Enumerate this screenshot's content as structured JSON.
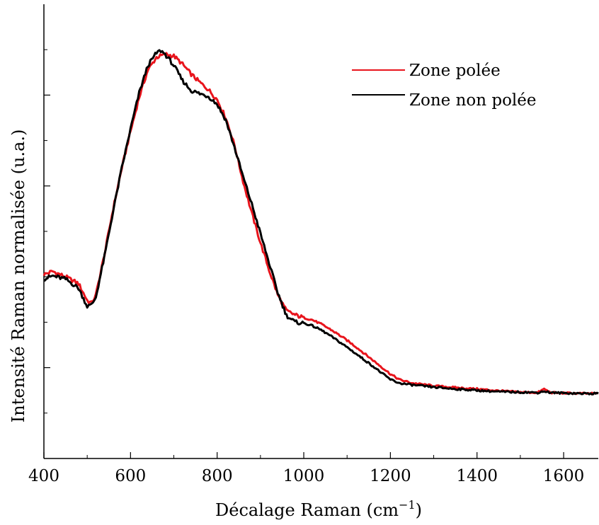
{
  "chart_data": {
    "type": "line",
    "title": "",
    "xlabel": "Décalage Raman (cm",
    "xlabel_sup": "−1",
    "xlabel_close": ")",
    "ylabel": "Intensité Raman normalisée (u.a.)",
    "xlim": [
      400,
      1680
    ],
    "ylim": [
      0,
      100
    ],
    "xticks": [
      400,
      600,
      800,
      1000,
      1200,
      1400,
      1600
    ],
    "xtick_labels": [
      "400",
      "600",
      "800",
      "1000",
      "1200",
      "1400",
      "1600"
    ],
    "grid": false,
    "legend_position": "top-right",
    "series": [
      {
        "name": "Zone polée",
        "color": "#e8141c",
        "x": [
          400,
          420,
          450,
          480,
          500,
          510,
          520,
          540,
          560,
          580,
          600,
          620,
          640,
          660,
          680,
          700,
          720,
          740,
          760,
          780,
          800,
          820,
          840,
          860,
          880,
          900,
          920,
          940,
          960,
          980,
          1000,
          1020,
          1040,
          1060,
          1080,
          1100,
          1120,
          1140,
          1160,
          1180,
          1200,
          1220,
          1250,
          1300,
          1350,
          1400,
          1450,
          1500,
          1540,
          1555,
          1570,
          1600,
          1650,
          1680
        ],
        "y": [
          40.5,
          41.2,
          40.0,
          38.5,
          34.8,
          34.2,
          36.0,
          45.0,
          55.0,
          64.0,
          72.0,
          79.5,
          85.5,
          88.3,
          89.0,
          88.6,
          86.8,
          84.6,
          82.8,
          81.2,
          79.0,
          75.0,
          69.0,
          61.0,
          54.0,
          47.5,
          41.5,
          36.0,
          32.5,
          31.6,
          31.0,
          30.5,
          29.6,
          28.5,
          27.3,
          26.0,
          24.6,
          23.1,
          21.6,
          20.1,
          18.6,
          17.4,
          16.6,
          16.0,
          15.6,
          15.3,
          14.9,
          14.6,
          14.5,
          15.3,
          14.5,
          14.4,
          14.3,
          14.3
        ]
      },
      {
        "name": "Zone non polée",
        "color": "#000000",
        "x": [
          400,
          420,
          450,
          480,
          500,
          510,
          520,
          540,
          560,
          580,
          600,
          620,
          640,
          660,
          670,
          680,
          700,
          720,
          740,
          760,
          780,
          800,
          820,
          840,
          860,
          880,
          900,
          920,
          940,
          960,
          980,
          1000,
          1020,
          1040,
          1060,
          1080,
          1100,
          1120,
          1140,
          1160,
          1180,
          1200,
          1220,
          1250,
          1300,
          1350,
          1400,
          1450,
          1500,
          1540,
          1555,
          1570,
          1600,
          1650,
          1680
        ],
        "y": [
          39.5,
          40.2,
          39.5,
          37.5,
          33.5,
          33.8,
          35.5,
          44.5,
          54.5,
          64.0,
          72.5,
          80.5,
          86.5,
          89.3,
          89.8,
          89.0,
          86.5,
          83.2,
          81.0,
          80.3,
          79.7,
          78.0,
          74.5,
          68.5,
          62.0,
          56.0,
          49.5,
          43.0,
          36.5,
          31.5,
          30.0,
          29.8,
          29.2,
          28.3,
          27.1,
          25.8,
          24.5,
          23.1,
          21.7,
          20.3,
          18.8,
          17.4,
          16.6,
          16.2,
          15.7,
          15.3,
          15.0,
          14.7,
          14.6,
          14.5,
          14.8,
          14.5,
          14.4,
          14.3,
          14.3
        ]
      }
    ]
  }
}
